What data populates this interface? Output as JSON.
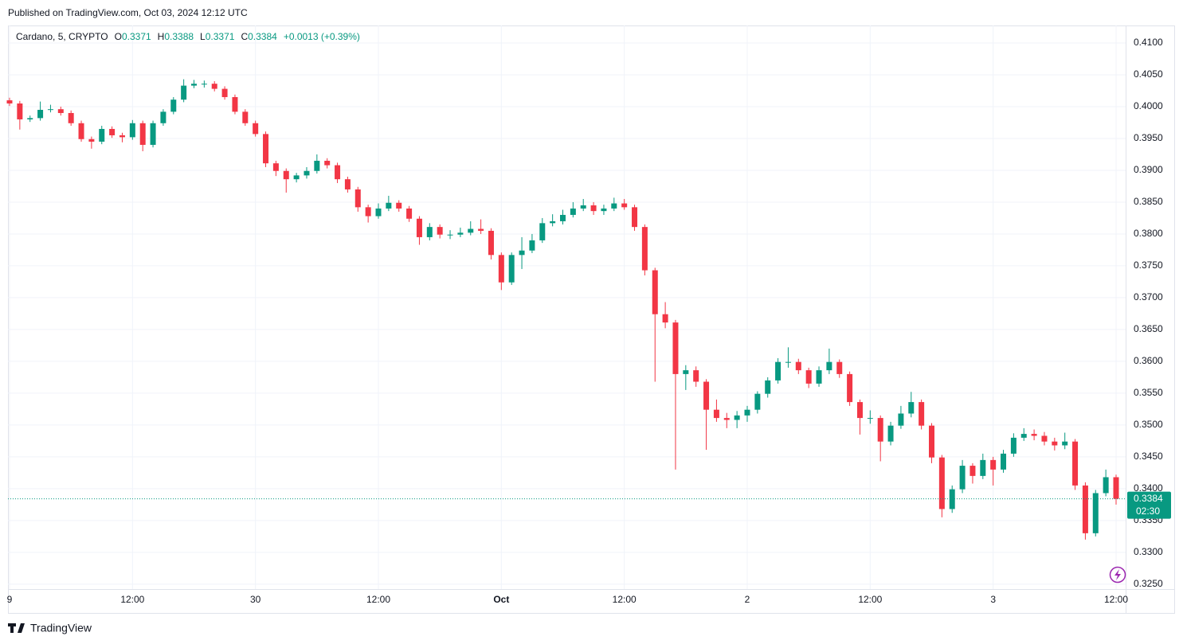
{
  "published": "Published on TradingView.com, Oct 03, 2024 12:12 UTC",
  "brand": "TradingView",
  "chart_data": {
    "type": "candlestick",
    "symbol": "Cardano, 5, CRYPTO",
    "ohlc_labels": [
      "O",
      "H",
      "L",
      "C"
    ],
    "last_bar": [
      0.3371,
      0.3388,
      0.3371,
      0.3384
    ],
    "change": "+0.0013 (+0.39%)",
    "last_price": 0.3384,
    "countdown": "02:30",
    "up_color": "#089981",
    "down_color": "#f23645",
    "grid": true,
    "ylim": [
      0.32423,
      0.41275
    ],
    "yticks": [
      {
        "value": 0.41,
        "label": "0.4100"
      },
      {
        "value": 0.405,
        "label": "0.4050"
      },
      {
        "value": 0.4,
        "label": "0.4000"
      },
      {
        "value": 0.395,
        "label": "0.3950"
      },
      {
        "value": 0.39,
        "label": "0.3900"
      },
      {
        "value": 0.385,
        "label": "0.3850"
      },
      {
        "value": 0.38,
        "label": "0.3800"
      },
      {
        "value": 0.375,
        "label": "0.3750"
      },
      {
        "value": 0.37,
        "label": "0.3700"
      },
      {
        "value": 0.365,
        "label": "0.3650"
      },
      {
        "value": 0.36,
        "label": "0.3600"
      },
      {
        "value": 0.355,
        "label": "0.3550"
      },
      {
        "value": 0.35,
        "label": "0.3500"
      },
      {
        "value": 0.345,
        "label": "0.3450"
      },
      {
        "value": 0.34,
        "label": "0.3400"
      },
      {
        "value": 0.335,
        "label": "0.3350"
      },
      {
        "value": 0.33,
        "label": "0.3300"
      },
      {
        "value": 0.325,
        "label": "0.3250"
      }
    ],
    "categories": [
      "9",
      null,
      null,
      null,
      null,
      null,
      null,
      null,
      null,
      null,
      null,
      null,
      "12:00",
      null,
      null,
      null,
      null,
      null,
      null,
      null,
      null,
      null,
      null,
      null,
      "30",
      null,
      null,
      null,
      null,
      null,
      null,
      null,
      null,
      null,
      null,
      null,
      "12:00",
      null,
      null,
      null,
      null,
      null,
      null,
      null,
      null,
      null,
      null,
      null,
      "Oct",
      null,
      null,
      null,
      null,
      null,
      null,
      null,
      null,
      null,
      null,
      null,
      "12:00",
      null,
      null,
      null,
      null,
      null,
      null,
      null,
      null,
      null,
      null,
      null,
      "2",
      null,
      null,
      null,
      null,
      null,
      null,
      null,
      null,
      null,
      null,
      null,
      "12:00",
      null,
      null,
      null,
      null,
      null,
      null,
      null,
      null,
      null,
      null,
      null,
      "3",
      null,
      null,
      null,
      null,
      null,
      null,
      null,
      null,
      null,
      null,
      null,
      "12:00"
    ],
    "ohlc": [
      [
        0.401,
        0.4014,
        0.4001,
        0.4005
      ],
      [
        0.4005,
        0.4009,
        0.3964,
        0.398
      ],
      [
        0.398,
        0.3986,
        0.3976,
        0.3982
      ],
      [
        0.3982,
        0.4008,
        0.3978,
        0.3995
      ],
      [
        0.3995,
        0.4003,
        0.3991,
        0.3996
      ],
      [
        0.3996,
        0.4,
        0.3986,
        0.399
      ],
      [
        0.399,
        0.3994,
        0.397,
        0.3974
      ],
      [
        0.3974,
        0.3978,
        0.3945,
        0.3949
      ],
      [
        0.3949,
        0.3953,
        0.3934,
        0.3945
      ],
      [
        0.3945,
        0.397,
        0.3941,
        0.3965
      ],
      [
        0.3965,
        0.3969,
        0.3951,
        0.3955
      ],
      [
        0.3955,
        0.3959,
        0.3944,
        0.3952
      ],
      [
        0.3952,
        0.3979,
        0.3948,
        0.3974
      ],
      [
        0.3974,
        0.3978,
        0.393,
        0.394
      ],
      [
        0.394,
        0.3978,
        0.3936,
        0.3974
      ],
      [
        0.3974,
        0.3996,
        0.397,
        0.3992
      ],
      [
        0.3992,
        0.4015,
        0.3988,
        0.4011
      ],
      [
        0.4011,
        0.4043,
        0.4007,
        0.4033
      ],
      [
        0.4033,
        0.4042,
        0.4029,
        0.4036
      ],
      [
        0.4036,
        0.4041,
        0.403,
        0.4036
      ],
      [
        0.4036,
        0.404,
        0.4024,
        0.4028
      ],
      [
        0.4028,
        0.4032,
        0.4011,
        0.4015
      ],
      [
        0.4015,
        0.4019,
        0.3988,
        0.3992
      ],
      [
        0.3992,
        0.3996,
        0.397,
        0.3974
      ],
      [
        0.3974,
        0.3978,
        0.3953,
        0.3957
      ],
      [
        0.3957,
        0.3961,
        0.3905,
        0.3911
      ],
      [
        0.3911,
        0.3915,
        0.3891,
        0.3899
      ],
      [
        0.3899,
        0.3903,
        0.3865,
        0.3886
      ],
      [
        0.3886,
        0.3896,
        0.3881,
        0.3892
      ],
      [
        0.3892,
        0.3905,
        0.3887,
        0.3899
      ],
      [
        0.3899,
        0.3925,
        0.3895,
        0.3915
      ],
      [
        0.3915,
        0.3919,
        0.3903,
        0.3908
      ],
      [
        0.3908,
        0.3912,
        0.388,
        0.3886
      ],
      [
        0.3886,
        0.389,
        0.3865,
        0.387
      ],
      [
        0.387,
        0.3874,
        0.3835,
        0.3842
      ],
      [
        0.3842,
        0.3846,
        0.3818,
        0.3828
      ],
      [
        0.3828,
        0.3848,
        0.3824,
        0.384
      ],
      [
        0.384,
        0.386,
        0.3836,
        0.3849
      ],
      [
        0.3849,
        0.3853,
        0.3835,
        0.384
      ],
      [
        0.384,
        0.3844,
        0.3819,
        0.3824
      ],
      [
        0.3824,
        0.3828,
        0.3783,
        0.3795
      ],
      [
        0.3795,
        0.3817,
        0.379,
        0.3811
      ],
      [
        0.3811,
        0.3815,
        0.3793,
        0.3799
      ],
      [
        0.3799,
        0.3806,
        0.3792,
        0.3799
      ],
      [
        0.3799,
        0.381,
        0.3795,
        0.3802
      ],
      [
        0.3802,
        0.382,
        0.3798,
        0.3808
      ],
      [
        0.3808,
        0.3823,
        0.38,
        0.3805
      ],
      [
        0.3805,
        0.3809,
        0.376,
        0.3767
      ],
      [
        0.3767,
        0.3771,
        0.3712,
        0.3724
      ],
      [
        0.3724,
        0.3771,
        0.372,
        0.3767
      ],
      [
        0.3767,
        0.3795,
        0.3745,
        0.3774
      ],
      [
        0.3774,
        0.38,
        0.377,
        0.379
      ],
      [
        0.379,
        0.3825,
        0.3786,
        0.3817
      ],
      [
        0.3817,
        0.3831,
        0.3812,
        0.382
      ],
      [
        0.382,
        0.3838,
        0.3815,
        0.383
      ],
      [
        0.383,
        0.385,
        0.3826,
        0.384
      ],
      [
        0.384,
        0.3855,
        0.3836,
        0.3845
      ],
      [
        0.3845,
        0.385,
        0.383,
        0.3836
      ],
      [
        0.3836,
        0.3846,
        0.383,
        0.384
      ],
      [
        0.384,
        0.3857,
        0.3836,
        0.3848
      ],
      [
        0.3848,
        0.3855,
        0.3838,
        0.3842
      ],
      [
        0.3842,
        0.3846,
        0.3805,
        0.3811
      ],
      [
        0.3811,
        0.3815,
        0.3735,
        0.3743
      ],
      [
        0.3743,
        0.3747,
        0.3568,
        0.3674
      ],
      [
        0.3674,
        0.3693,
        0.3652,
        0.3661
      ],
      [
        0.3661,
        0.3665,
        0.343,
        0.358
      ],
      [
        0.358,
        0.3594,
        0.3555,
        0.3586
      ],
      [
        0.3586,
        0.3592,
        0.356,
        0.3568
      ],
      [
        0.3568,
        0.3572,
        0.3461,
        0.3524
      ],
      [
        0.3524,
        0.354,
        0.3505,
        0.3511
      ],
      [
        0.3511,
        0.3519,
        0.3495,
        0.3508
      ],
      [
        0.3508,
        0.3522,
        0.3495,
        0.3515
      ],
      [
        0.3515,
        0.353,
        0.3505,
        0.3524
      ],
      [
        0.3524,
        0.3553,
        0.3518,
        0.3549
      ],
      [
        0.3549,
        0.3575,
        0.3543,
        0.357
      ],
      [
        0.357,
        0.3605,
        0.3565,
        0.3599
      ],
      [
        0.3599,
        0.3622,
        0.359,
        0.3599
      ],
      [
        0.3599,
        0.3604,
        0.358,
        0.3586
      ],
      [
        0.3586,
        0.359,
        0.3558,
        0.3565
      ],
      [
        0.3565,
        0.3592,
        0.356,
        0.3586
      ],
      [
        0.3586,
        0.362,
        0.358,
        0.3599
      ],
      [
        0.3599,
        0.3603,
        0.3574,
        0.358
      ],
      [
        0.358,
        0.3584,
        0.353,
        0.3536
      ],
      [
        0.3536,
        0.354,
        0.3485,
        0.3511
      ],
      [
        0.3511,
        0.3523,
        0.3502,
        0.3511
      ],
      [
        0.3511,
        0.3515,
        0.3443,
        0.3474
      ],
      [
        0.3474,
        0.3505,
        0.3468,
        0.3499
      ],
      [
        0.3499,
        0.353,
        0.3494,
        0.3518
      ],
      [
        0.3518,
        0.3552,
        0.3512,
        0.3536
      ],
      [
        0.3536,
        0.354,
        0.3493,
        0.3499
      ],
      [
        0.3499,
        0.3503,
        0.344,
        0.3449
      ],
      [
        0.3449,
        0.3453,
        0.3355,
        0.3368
      ],
      [
        0.3368,
        0.3405,
        0.3362,
        0.3399
      ],
      [
        0.3399,
        0.3445,
        0.3393,
        0.3436
      ],
      [
        0.3436,
        0.344,
        0.3408,
        0.342
      ],
      [
        0.342,
        0.3455,
        0.3415,
        0.3445
      ],
      [
        0.3445,
        0.345,
        0.3405,
        0.343
      ],
      [
        0.343,
        0.3461,
        0.3425,
        0.3455
      ],
      [
        0.3455,
        0.3487,
        0.345,
        0.348
      ],
      [
        0.348,
        0.3495,
        0.3475,
        0.3486
      ],
      [
        0.3486,
        0.3493,
        0.3476,
        0.3483
      ],
      [
        0.3483,
        0.3489,
        0.3468,
        0.3474
      ],
      [
        0.3474,
        0.348,
        0.346,
        0.3468
      ],
      [
        0.3468,
        0.3488,
        0.3462,
        0.3474
      ],
      [
        0.3474,
        0.3478,
        0.3398,
        0.3405
      ],
      [
        0.3405,
        0.341,
        0.332,
        0.333
      ],
      [
        0.333,
        0.3398,
        0.3325,
        0.3393
      ],
      [
        0.3393,
        0.343,
        0.3388,
        0.3418
      ],
      [
        0.3418,
        0.3422,
        0.3375,
        0.3384
      ]
    ]
  }
}
